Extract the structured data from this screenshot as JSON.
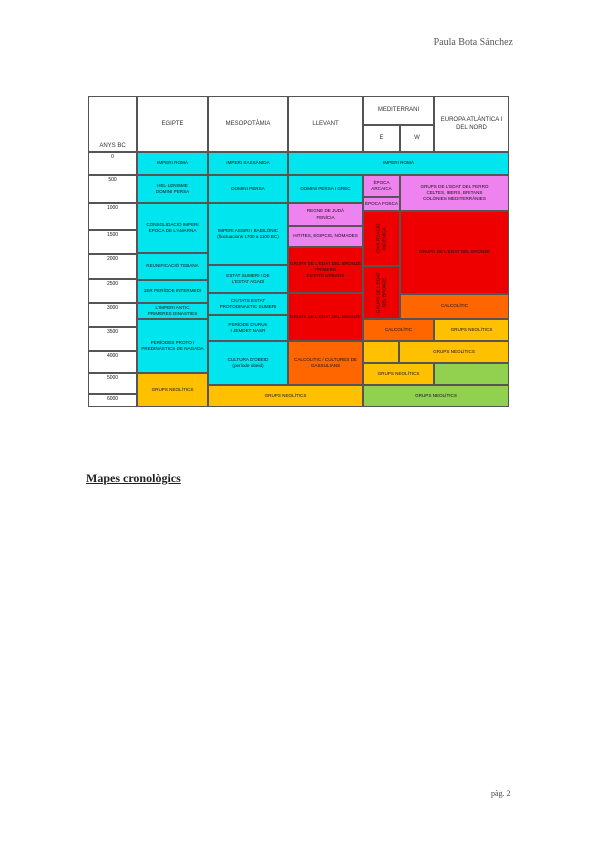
{
  "header": {
    "author": "Paula Bota Sánchez"
  },
  "table": {
    "corner_label": "ANYS BC",
    "headers": {
      "egipte": "EGIPTE",
      "mesopotamia": "MESOPOTÀMIA",
      "llevant": "LLEVANT",
      "mediterrani": "MEDITERRANI",
      "e": "E",
      "w": "W",
      "europa": "EUROPA ATLÀNTICA I DEL NORD"
    },
    "years": [
      "0",
      "500",
      "1000",
      "1500",
      "2000",
      "2500",
      "3000",
      "3500",
      "4000",
      "5000",
      "6000"
    ],
    "cells": [
      {
        "key": "c1",
        "text": "IMPERI ROMÀ",
        "color": "#00E5EE"
      },
      {
        "key": "c2",
        "text": "IMPERI SASSÀNIDA",
        "color": "#00E5EE"
      },
      {
        "key": "c3",
        "text": "IMPERI ROMÀ",
        "color": "#00E5EE"
      },
      {
        "key": "c4",
        "text": "HEL·LENISME\nDOMINI PERSA",
        "color": "#00E5EE"
      },
      {
        "key": "c5",
        "text": "DOMINI PERSA",
        "color": "#00E5EE"
      },
      {
        "key": "c6",
        "text": "DOMINI PERSA I GREC",
        "color": "#00E5EE"
      },
      {
        "key": "c7",
        "text": "ÈPOCA ARCAICA",
        "color": "#EE82EE"
      },
      {
        "key": "c8",
        "text": "GRUPS DE L'EDAT DEL FERRO\nCELTES, IBERS, BRITANS\nCOLÒNIES MEDITERRÀNIES",
        "color": "#EE82EE"
      },
      {
        "key": "c9",
        "text": "CONSOLIDACIÓ IMPERI\nÈPOCA DE L'AMARNA",
        "color": "#00E5EE"
      },
      {
        "key": "c10",
        "text": "ÈPOCA FOSCA",
        "color": "#EE82EE"
      },
      {
        "key": "c11",
        "text": "REGNE DE JUDÀ\nFENÍCIA",
        "color": "#EE82EE"
      },
      {
        "key": "c12",
        "text": "IMPERI ASSIRI I BABILÒNIC\n(fluctuacions 1700 a 1100 BC)",
        "color": "#00E5EE"
      },
      {
        "key": "c13",
        "text": "HITITES, EGIPCIS, NÒMADES",
        "color": "#EE82EE"
      },
      {
        "key": "c14",
        "text": "CIVILITZACIÓ MICÈNICA",
        "color": "#EE0000"
      },
      {
        "key": "c15",
        "text": "GRUPS DE L'EDAT DEL BRONZE",
        "color": "#EE0000"
      },
      {
        "key": "c16",
        "text": "REUNIFICACIÓ TEBANA",
        "color": "#00E5EE"
      },
      {
        "key": "c17",
        "text": "GRUPS DE L'EDAT DEL BRONZE\nPRIMERS\nESTATS URBANS",
        "color": "#EE0000"
      },
      {
        "key": "c18",
        "text": "1ER PERÍODE INTERMEDI",
        "color": "#00E5EE"
      },
      {
        "key": "c19",
        "text": "ESTAT SUMERI I DE\nL'ESTAT AGADÍ",
        "color": "#00E5EE"
      },
      {
        "key": "c20",
        "text": "GRUPS DE L'EDAT DEL BRONZE",
        "color": "#EE0000"
      },
      {
        "key": "c21",
        "text": "CALCOLÍTIC",
        "color": "#FF6600"
      },
      {
        "key": "c22",
        "text": "L'IMPERI ANTIC\nPRIMERES DINASTIES",
        "color": "#00E5EE"
      },
      {
        "key": "c23",
        "text": "CIUTATS ESTAT\nPROTODINASTIC SUMERI",
        "color": "#00E5EE"
      },
      {
        "key": "c24",
        "text": "GRUPS DE L'EDAT DEL BRONZE",
        "color": "#EE0000"
      },
      {
        "key": "c25",
        "text": "PERÍODE D'URUK\nI JEMDET NASR",
        "color": "#00E5EE"
      },
      {
        "key": "c26",
        "text": "CALCOLÍTIC",
        "color": "#FF6600"
      },
      {
        "key": "c27",
        "text": "GRUPS NEOLÍTICS",
        "color": "#FFC000"
      },
      {
        "key": "c28",
        "text": "PERÍODES PROTO I\nPREDINÀSTICS DE NAGADA",
        "color": "#00E5EE"
      },
      {
        "key": "c29",
        "text": "CULTURA D'OBEID\n(període obeid)",
        "color": "#00E5EE"
      },
      {
        "key": "c30",
        "text": "CALCOLÍTIC / CULTURES DE\nGASSULIANS",
        "color": "#FF6600"
      },
      {
        "key": "c31",
        "text": "GRUPS NEOLÍTICS",
        "color": "#FFC000"
      },
      {
        "key": "c32",
        "text": "GRUPS NEOLÍTICS",
        "color": "#FFC000"
      },
      {
        "key": "c33",
        "text": "GRUPS NEOLÍTICS",
        "color": "#FFC000"
      },
      {
        "key": "c34",
        "text": "GRUPS NEOLÍTICS",
        "color": "#FFC000"
      },
      {
        "key": "c35",
        "text": "GRUPS NEOLÍTICS",
        "color": "#92D050"
      },
      {
        "key": "c36",
        "text": "",
        "color": "#FFC000"
      },
      {
        "key": "c37",
        "text": "",
        "color": "#92D050"
      }
    ]
  },
  "section_title": "Mapes cronològics",
  "footer": {
    "page": "pàg. 2"
  }
}
